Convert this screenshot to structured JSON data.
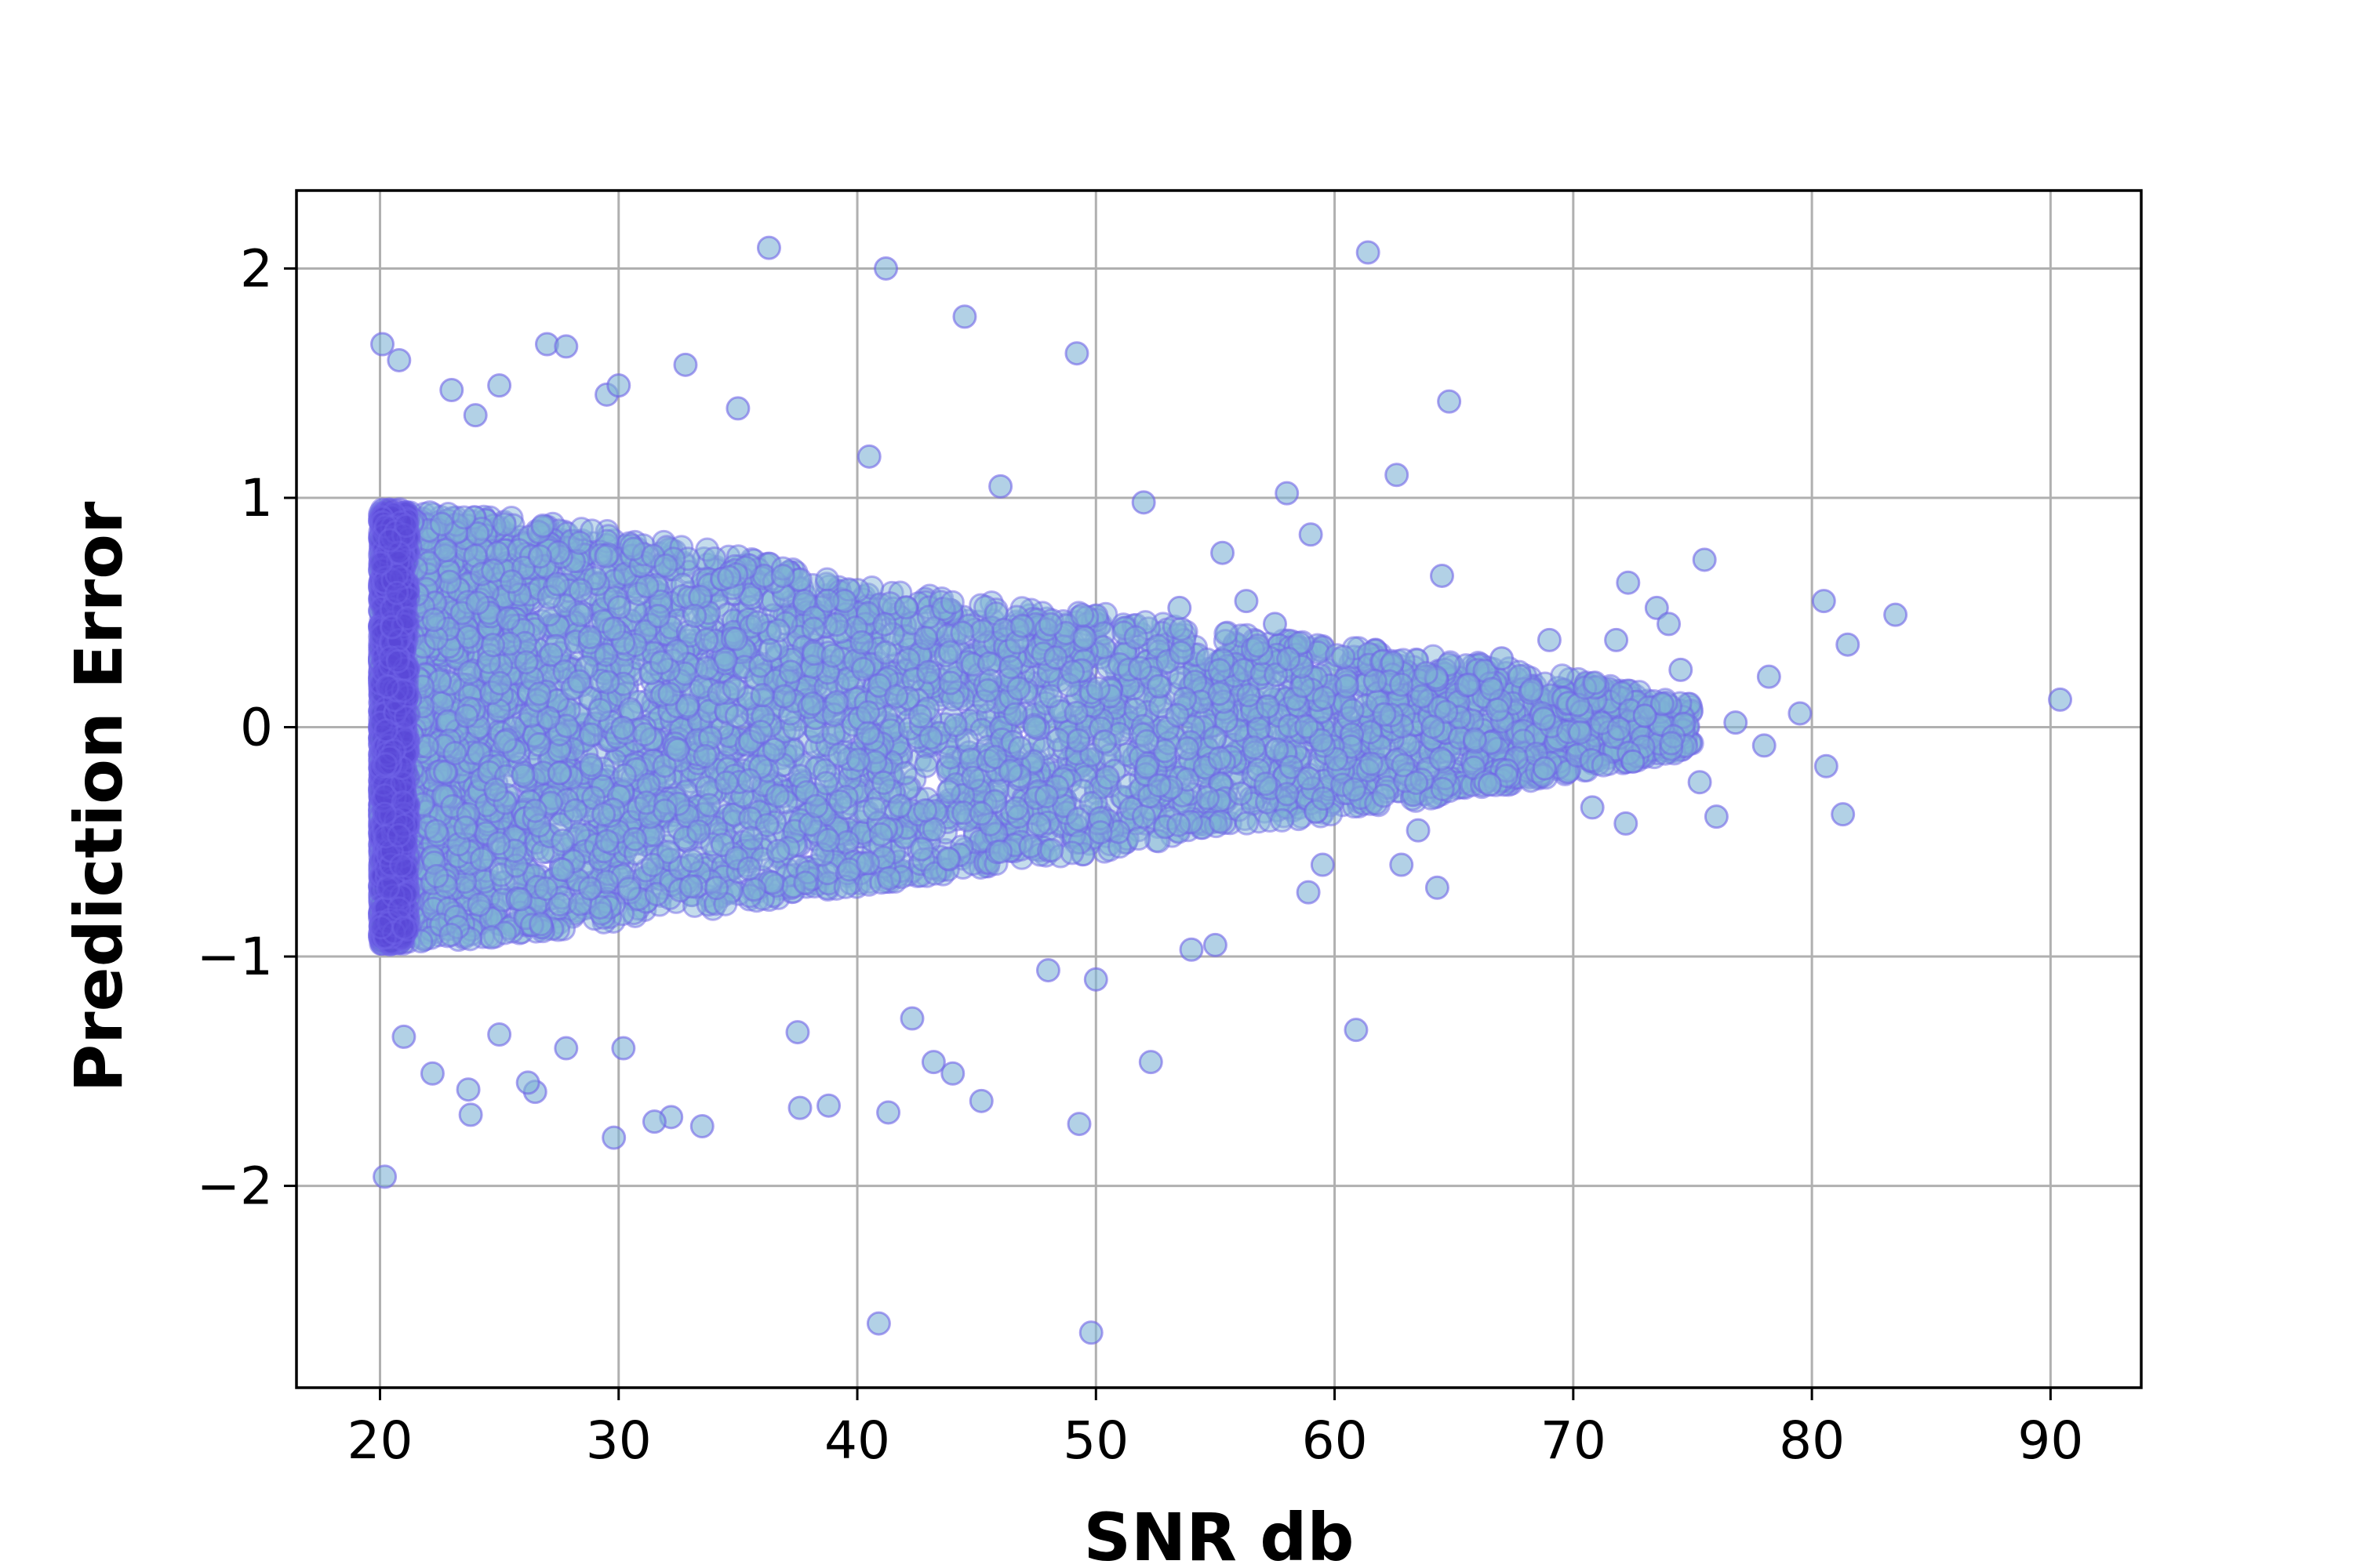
{
  "chart_data": {
    "type": "scatter",
    "title": "",
    "xlabel": "SNR db",
    "ylabel": "Prediction Error",
    "xlim": [
      16.5,
      93.8
    ],
    "ylim": [
      -2.88,
      2.34
    ],
    "xticks": [
      20,
      30,
      40,
      50,
      60,
      70,
      80,
      90
    ],
    "yticks": [
      -2,
      -1,
      0,
      1,
      2
    ],
    "xtick_labels": [
      "20",
      "30",
      "40",
      "50",
      "60",
      "70",
      "80",
      "90"
    ],
    "ytick_labels": [
      "−2",
      "−1",
      "0",
      "1",
      "2"
    ],
    "grid": true,
    "legend": "none",
    "marker_face_color": "#7fb3d5",
    "marker_edge_color": "#6f63e8",
    "core_color": "#5a48d8",
    "series": [
      {
        "cloud_envelope": {
          "snr": [
            20,
            25,
            30,
            35,
            40,
            45,
            50,
            55,
            60,
            65,
            70,
            75
          ],
          "upper": [
            0.95,
            0.92,
            0.85,
            0.75,
            0.62,
            0.55,
            0.5,
            0.42,
            0.36,
            0.3,
            0.22,
            0.1
          ],
          "lower": [
            -0.95,
            -0.92,
            -0.85,
            -0.78,
            -0.7,
            -0.62,
            -0.55,
            -0.45,
            -0.38,
            -0.3,
            -0.2,
            -0.1
          ]
        },
        "outliers": [
          [
            20.1,
            1.67
          ],
          [
            20.8,
            1.6
          ],
          [
            23.0,
            1.47
          ],
          [
            24.0,
            1.36
          ],
          [
            25.0,
            1.49
          ],
          [
            27.0,
            1.67
          ],
          [
            27.8,
            1.66
          ],
          [
            29.5,
            1.45
          ],
          [
            30.0,
            1.49
          ],
          [
            32.8,
            1.58
          ],
          [
            35.0,
            1.39
          ],
          [
            36.3,
            2.09
          ],
          [
            41.2,
            2.0
          ],
          [
            44.5,
            1.79
          ],
          [
            49.2,
            1.63
          ],
          [
            61.4,
            2.07
          ],
          [
            64.8,
            1.42
          ],
          [
            62.6,
            1.1
          ],
          [
            58.0,
            1.02
          ],
          [
            52.0,
            0.98
          ],
          [
            46.0,
            1.05
          ],
          [
            40.5,
            1.18
          ],
          [
            59.0,
            0.84
          ],
          [
            55.3,
            0.76
          ],
          [
            64.5,
            0.66
          ],
          [
            72.3,
            0.63
          ],
          [
            75.5,
            0.73
          ],
          [
            80.5,
            0.55
          ],
          [
            83.5,
            0.49
          ],
          [
            81.5,
            0.36
          ],
          [
            78.2,
            0.22
          ],
          [
            79.5,
            0.06
          ],
          [
            90.4,
            0.12
          ],
          [
            78.0,
            -0.08
          ],
          [
            80.6,
            -0.17
          ],
          [
            81.3,
            -0.38
          ],
          [
            76.0,
            -0.39
          ],
          [
            75.3,
            -0.24
          ],
          [
            72.2,
            -0.42
          ],
          [
            70.8,
            -0.35
          ],
          [
            64.3,
            -0.7
          ],
          [
            62.8,
            -0.6
          ],
          [
            59.5,
            -0.6
          ],
          [
            58.9,
            -0.72
          ],
          [
            54.0,
            -0.97
          ],
          [
            52.3,
            -1.46
          ],
          [
            50.0,
            -1.1
          ],
          [
            49.3,
            -1.73
          ],
          [
            48.0,
            -1.06
          ],
          [
            45.2,
            -1.63
          ],
          [
            44.0,
            -1.51
          ],
          [
            43.2,
            -1.46
          ],
          [
            42.3,
            -1.27
          ],
          [
            41.3,
            -1.68
          ],
          [
            38.8,
            -1.65
          ],
          [
            37.6,
            -1.66
          ],
          [
            37.5,
            -1.33
          ],
          [
            33.5,
            -1.74
          ],
          [
            32.2,
            -1.7
          ],
          [
            31.5,
            -1.72
          ],
          [
            29.8,
            -1.79
          ],
          [
            30.2,
            -1.4
          ],
          [
            27.8,
            -1.4
          ],
          [
            26.5,
            -1.59
          ],
          [
            26.2,
            -1.55
          ],
          [
            25.0,
            -1.34
          ],
          [
            23.8,
            -1.69
          ],
          [
            23.7,
            -1.58
          ],
          [
            22.2,
            -1.51
          ],
          [
            21.0,
            -1.35
          ],
          [
            20.2,
            -1.96
          ],
          [
            40.9,
            -2.6
          ],
          [
            49.8,
            -2.64
          ],
          [
            60.9,
            -1.32
          ],
          [
            55.0,
            -0.95
          ],
          [
            56.3,
            0.55
          ],
          [
            67.0,
            0.3
          ],
          [
            69.0,
            0.38
          ],
          [
            73.5,
            0.52
          ],
          [
            74.0,
            0.45
          ],
          [
            74.5,
            0.25
          ],
          [
            71.8,
            0.38
          ],
          [
            73.0,
            0.05
          ],
          [
            76.8,
            0.02
          ],
          [
            72.5,
            -0.15
          ],
          [
            68.8,
            -0.18
          ],
          [
            66.5,
            -0.25
          ],
          [
            63.5,
            -0.45
          ],
          [
            57.5,
            0.45
          ],
          [
            53.5,
            0.52
          ]
        ]
      }
    ]
  }
}
